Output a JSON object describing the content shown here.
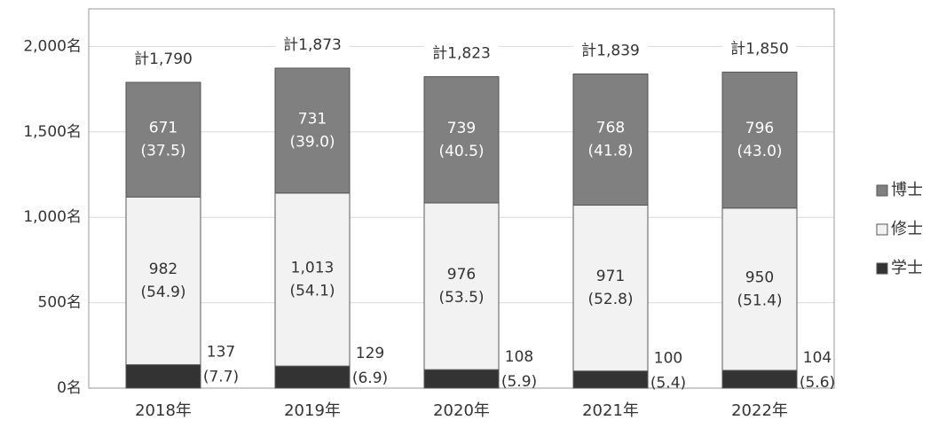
{
  "chart_data": {
    "type": "stacked_bar",
    "categories": [
      "2018年",
      "2019年",
      "2020年",
      "2021年",
      "2022年"
    ],
    "series": [
      {
        "name": "学士",
        "color": "#333333",
        "values": [
          137,
          129,
          108,
          100,
          104
        ],
        "value_labels": [
          "137",
          "129",
          "108",
          "100",
          "104"
        ],
        "shares": [
          7.7,
          6.9,
          5.9,
          5.4,
          5.6
        ],
        "share_labels": [
          "(7.7)",
          "(6.9)",
          "(5.9)",
          "(5.4)",
          "(5.6)"
        ]
      },
      {
        "name": "修士",
        "color": "#f2f2f2",
        "values": [
          982,
          1013,
          976,
          971,
          950
        ],
        "value_labels": [
          "982",
          "1,013",
          "976",
          "971",
          "950"
        ],
        "shares": [
          54.9,
          54.1,
          53.5,
          52.8,
          51.4
        ],
        "share_labels": [
          "(54.9)",
          "(54.1)",
          "(53.5)",
          "(52.8)",
          "(51.4)"
        ]
      },
      {
        "name": "博士",
        "color": "#808080",
        "values": [
          671,
          731,
          739,
          768,
          796
        ],
        "value_labels": [
          "671",
          "731",
          "739",
          "768",
          "796"
        ],
        "shares": [
          37.5,
          39.0,
          40.5,
          41.8,
          43.0
        ],
        "share_labels": [
          "(37.5)",
          "(39.0)",
          "(40.5)",
          "(41.8)",
          "(43.0)"
        ]
      }
    ],
    "totals": [
      1790,
      1873,
      1823,
      1839,
      1850
    ],
    "total_labels": [
      "計1,790",
      "計1,873",
      "計1,823",
      "計1,839",
      "計1,850"
    ],
    "ylim": [
      0,
      2220
    ],
    "yticks": [
      {
        "value": 0,
        "label": "0名"
      },
      {
        "value": 500,
        "label": "500名"
      },
      {
        "value": 1000,
        "label": "1,000名"
      },
      {
        "value": 1500,
        "label": "1,500名"
      },
      {
        "value": 2000,
        "label": "2,000名"
      }
    ],
    "grid": true
  }
}
